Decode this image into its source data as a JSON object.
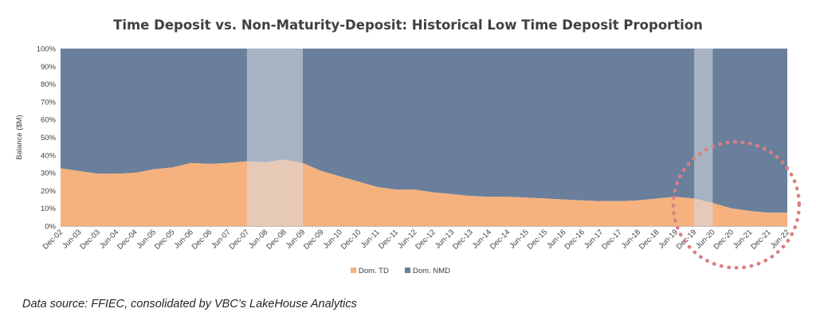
{
  "source_note": "Data source: FFIEC, consolidated by VBC’s LakeHouse Analytics",
  "chart_data": {
    "type": "area",
    "stacked": "percent",
    "title": "Time Deposit vs. Non-Maturity-Deposit: Historical Low Time Deposit Proportion",
    "xlabel": "",
    "ylabel": "Balance ($M)",
    "ylim": [
      0,
      100
    ],
    "y_ticks": [
      "0%",
      "10%",
      "20%",
      "30%",
      "40%",
      "50%",
      "60%",
      "70%",
      "80%",
      "90%",
      "100%"
    ],
    "x_ticks": [
      "Dec-02",
      "Jun-03",
      "Dec-03",
      "Jun-04",
      "Dec-04",
      "Jun-05",
      "Dec-05",
      "Jun-06",
      "Dec-06",
      "Jun-07",
      "Dec-07",
      "Jun-08",
      "Dec-08",
      "Jun-09",
      "Dec-09",
      "Jun-10",
      "Dec-10",
      "Jun-11",
      "Dec-11",
      "Jun-12",
      "Dec-12",
      "Jun-13",
      "Dec-13",
      "Jun-14",
      "Dec-14",
      "Jun-15",
      "Dec-15",
      "Jun-16",
      "Dec-16",
      "Jun-17",
      "Dec-17",
      "Jun-18",
      "Dec-18",
      "Jun-19",
      "Dec-19",
      "Jun-20",
      "Dec-20",
      "Jun-21",
      "Dec-21",
      "Jun-22"
    ],
    "legend_position": "bottom",
    "grid": false,
    "series": [
      {
        "name": "Dom. TD",
        "color": "#f5b27e",
        "x": [
          "Dec-02",
          "Jun-03",
          "Dec-03",
          "Jun-04",
          "Dec-04",
          "Jun-05",
          "Dec-05",
          "Jun-06",
          "Dec-06",
          "Jun-07",
          "Dec-07",
          "Jun-08",
          "Dec-08",
          "Jun-09",
          "Dec-09",
          "Jun-10",
          "Dec-10",
          "Jun-11",
          "Dec-11",
          "Jun-12",
          "Dec-12",
          "Jun-13",
          "Dec-13",
          "Jun-14",
          "Dec-14",
          "Jun-15",
          "Dec-15",
          "Jun-16",
          "Dec-16",
          "Jun-17",
          "Dec-17",
          "Jun-18",
          "Dec-18",
          "Jun-19",
          "Dec-19",
          "Jun-20",
          "Dec-20",
          "Jun-21",
          "Dec-21",
          "Jun-22"
        ],
        "values": [
          32.5,
          31,
          29.5,
          29.5,
          30,
          32,
          33,
          35.5,
          35,
          35.5,
          36.5,
          36,
          37.5,
          35.5,
          31,
          28,
          25,
          22,
          20.5,
          20.5,
          19,
          18,
          17,
          16.5,
          16.5,
          16,
          15.5,
          15,
          14.5,
          14,
          14,
          14.5,
          15.5,
          16.5,
          15.5,
          13,
          10,
          8.5,
          7.5,
          7.5
        ]
      },
      {
        "name": "Dom. NMD",
        "color": "#6a7f9b",
        "x": [
          "Dec-02",
          "Jun-03",
          "Dec-03",
          "Jun-04",
          "Dec-04",
          "Jun-05",
          "Dec-05",
          "Jun-06",
          "Dec-06",
          "Jun-07",
          "Dec-07",
          "Jun-08",
          "Dec-08",
          "Jun-09",
          "Dec-09",
          "Jun-10",
          "Dec-10",
          "Jun-11",
          "Dec-11",
          "Jun-12",
          "Dec-12",
          "Jun-13",
          "Dec-13",
          "Jun-14",
          "Dec-14",
          "Jun-15",
          "Dec-15",
          "Jun-16",
          "Dec-16",
          "Jun-17",
          "Dec-17",
          "Jun-18",
          "Dec-18",
          "Jun-19",
          "Dec-19",
          "Jun-20",
          "Dec-20",
          "Jun-21",
          "Dec-21",
          "Jun-22"
        ],
        "values": [
          67.5,
          69,
          70.5,
          70.5,
          70,
          68,
          67,
          64.5,
          65,
          64.5,
          63.5,
          64,
          62.5,
          64.5,
          69,
          72,
          75,
          78,
          79.5,
          79.5,
          81,
          82,
          83,
          83.5,
          83.5,
          84,
          84.5,
          85,
          85.5,
          86,
          86,
          85.5,
          84.5,
          83.5,
          84.5,
          87,
          90,
          91.5,
          92.5,
          92.5
        ]
      }
    ],
    "shaded_periods": [
      {
        "name": "recession-2008",
        "start": "Dec-07",
        "end": "Jun-09",
        "color": "#d9dde3"
      },
      {
        "name": "recession-2020",
        "start": "Dec-19",
        "end": "Jun-20",
        "color": "#d9dde3"
      }
    ],
    "annotations": [
      {
        "type": "dotted-circle",
        "color": "#d98080",
        "center_x": "Dec-20",
        "center_y": 20
      }
    ]
  }
}
